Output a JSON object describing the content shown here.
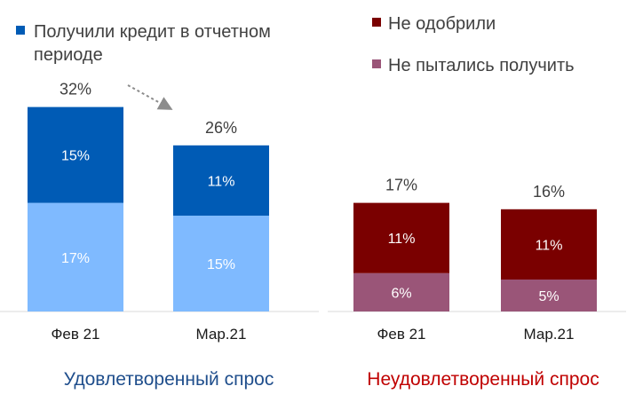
{
  "chart_data": [
    {
      "type": "bar",
      "stacked": true,
      "group_title": "Удовлетворенный спрос",
      "categories": [
        "Фев 21",
        "Мар.21"
      ],
      "totals": [
        32,
        26
      ],
      "total_labels": [
        "32%",
        "26%"
      ],
      "series": [
        {
          "values": [
            17,
            15
          ],
          "labels": [
            "17%",
            "15%"
          ],
          "color": "#7fbaff"
        },
        {
          "name_line1": "Получили кредит в отчетном",
          "name_line2": "периоде",
          "values": [
            15,
            11
          ],
          "labels": [
            "15%",
            "11%"
          ],
          "color": "#005bb5"
        }
      ],
      "colors": {
        "title": "#1f4e8c",
        "arrow": "#8c8c8c"
      }
    },
    {
      "type": "bar",
      "stacked": true,
      "group_title": "Неудовлетворенный спрос",
      "categories": [
        "Фев 21",
        "Мар.21"
      ],
      "totals": [
        17,
        16
      ],
      "total_labels": [
        "17%",
        "16%"
      ],
      "series": [
        {
          "name": "Не пытались получить",
          "values": [
            6,
            5
          ],
          "labels": [
            "6%",
            "5%"
          ],
          "color": "#9a5578"
        },
        {
          "name": "Не одобрили",
          "values": [
            11,
            11
          ],
          "labels": [
            "11%",
            "11%"
          ],
          "color": "#7a0000"
        }
      ],
      "colors": {
        "title": "#c00000"
      }
    }
  ]
}
